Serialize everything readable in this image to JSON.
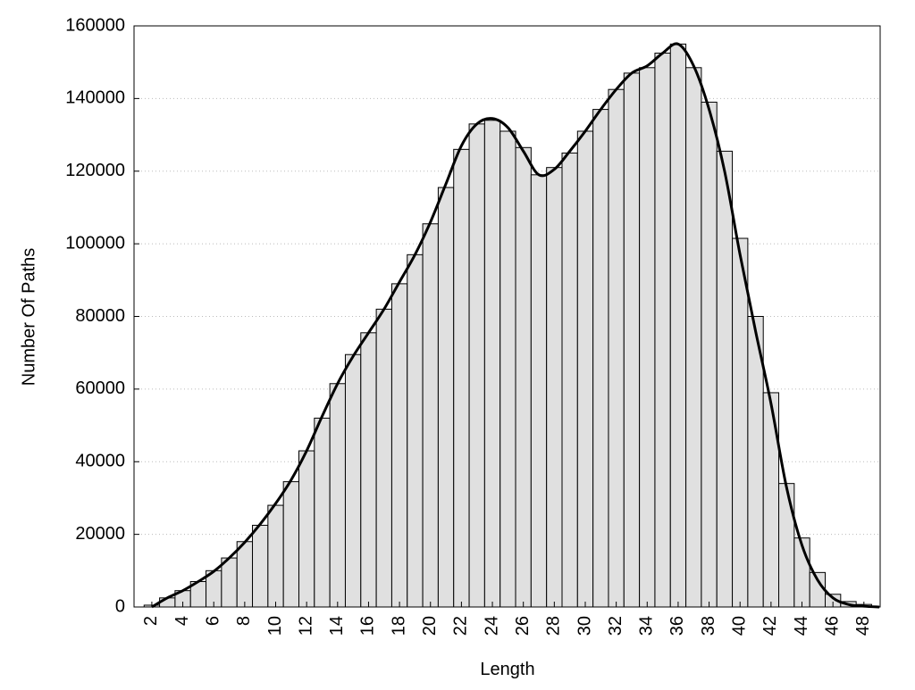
{
  "chart_data": {
    "type": "bar",
    "xlabel": "Length",
    "ylabel": "Number Of Paths",
    "x": [
      2,
      3,
      4,
      5,
      6,
      7,
      8,
      9,
      10,
      11,
      12,
      13,
      14,
      15,
      16,
      17,
      18,
      19,
      20,
      21,
      22,
      23,
      24,
      25,
      26,
      27,
      28,
      29,
      30,
      31,
      32,
      33,
      34,
      35,
      36,
      37,
      38,
      39,
      40,
      41,
      42,
      43,
      44,
      45,
      46,
      47,
      48
    ],
    "values": [
      500,
      2500,
      4500,
      7000,
      10000,
      13500,
      18000,
      22500,
      28000,
      34500,
      43000,
      52000,
      61500,
      69500,
      75500,
      82000,
      89000,
      97000,
      105500,
      115500,
      126000,
      133000,
      134000,
      131000,
      126500,
      119000,
      121000,
      125000,
      131000,
      137000,
      142500,
      147000,
      148500,
      152500,
      155000,
      148500,
      139000,
      125500,
      101500,
      80000,
      59000,
      34000,
      19000,
      9500,
      3500,
      1500,
      700
    ],
    "color": "#e0e0e0",
    "curve": {
      "color": "#000000",
      "x": [
        2,
        3,
        4,
        5,
        6,
        7,
        8,
        9,
        10,
        11,
        12,
        13,
        14,
        15,
        16,
        17,
        18,
        19,
        20,
        21,
        22,
        23,
        24,
        25,
        26,
        27,
        28,
        29,
        30,
        31,
        32,
        33,
        34,
        35,
        36,
        37,
        38,
        39,
        40,
        41,
        42,
        43,
        44,
        45,
        46,
        47,
        48,
        49
      ],
      "values": [
        0,
        2500,
        4500,
        7000,
        9800,
        13500,
        17800,
        22800,
        28500,
        35000,
        43000,
        52500,
        61500,
        69000,
        75500,
        82000,
        89500,
        97000,
        106000,
        116500,
        127000,
        133000,
        134500,
        132000,
        125500,
        119000,
        120500,
        125500,
        131000,
        137000,
        142500,
        147000,
        149000,
        152500,
        155000,
        149000,
        137000,
        120000,
        97000,
        76000,
        56000,
        33000,
        17000,
        7500,
        2500,
        700,
        200,
        0
      ]
    },
    "xlim": [
      0.85,
      49.05
    ],
    "xticks": [
      2,
      4,
      6,
      8,
      10,
      12,
      14,
      16,
      18,
      20,
      22,
      24,
      26,
      28,
      30,
      32,
      34,
      36,
      38,
      40,
      42,
      44,
      46,
      48
    ],
    "ylim": [
      0,
      160000
    ],
    "yticks": [
      0,
      20000,
      40000,
      60000,
      80000,
      100000,
      120000,
      140000,
      160000
    ],
    "grid": true
  }
}
